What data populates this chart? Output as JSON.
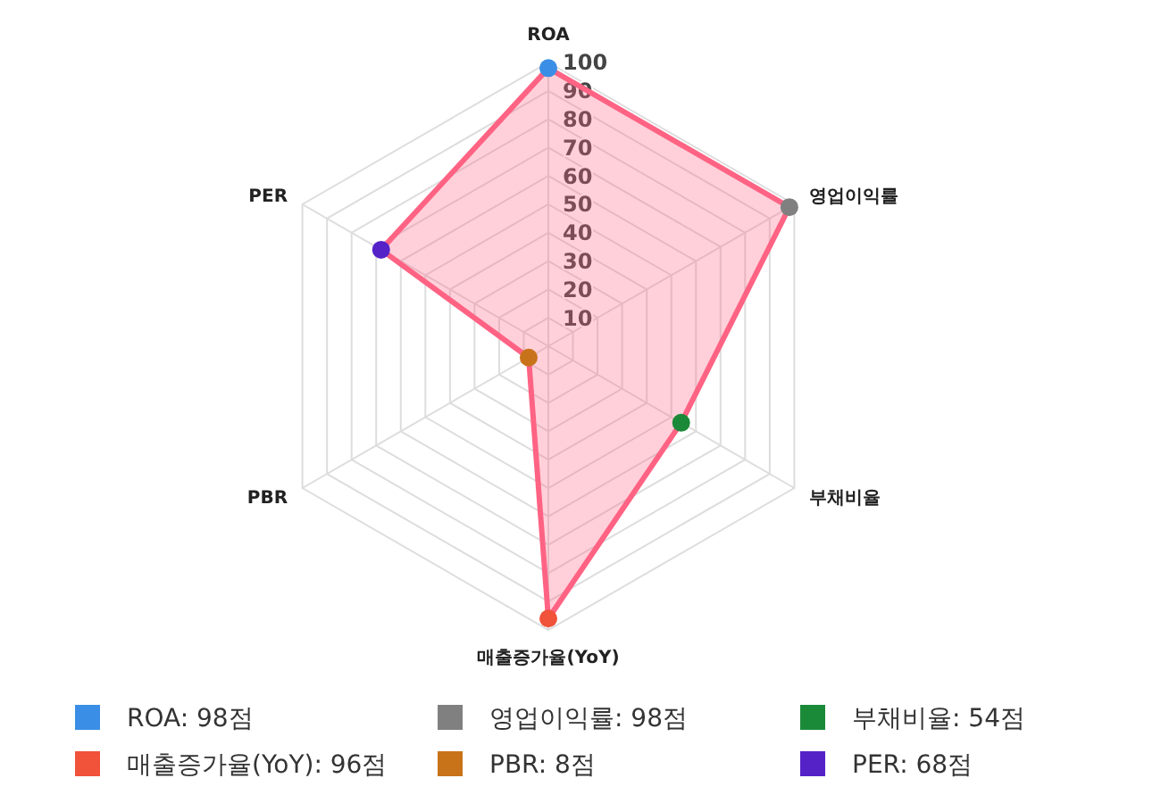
{
  "chart_data": {
    "type": "radar",
    "categories": [
      "ROA",
      "영업이익률",
      "부채비율",
      "매출증가율(YoY)",
      "PBR",
      "PER"
    ],
    "series": [
      {
        "color": "#ff6384",
        "values": [
          98,
          98,
          54,
          96,
          8,
          68
        ],
        "colors": [
          "#3a8ee6",
          "#808080",
          "#1b8a38",
          "#f0523a",
          "#c8731a",
          "#5522c8"
        ]
      }
    ],
    "annotations": [
      "ROA: 98점",
      "영업이익률: 98점",
      "부채비율: 54점",
      "매출증가율(YoY): 96점",
      "PBR: 8점",
      "PER: 68점"
    ],
    "ylim": [
      0,
      100
    ],
    "yticks": [
      10,
      20,
      30,
      40,
      50,
      60,
      70,
      80,
      90,
      100
    ],
    "grid": true,
    "marker": "circle"
  }
}
